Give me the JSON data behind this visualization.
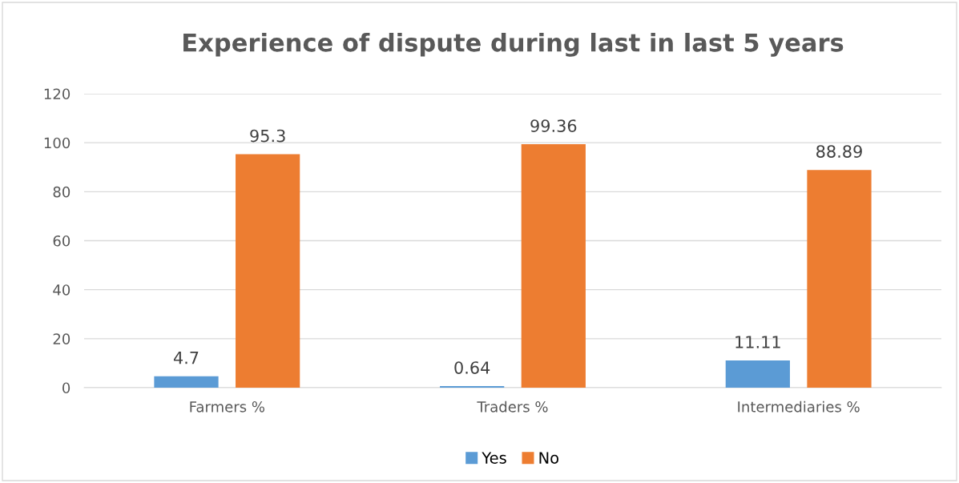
{
  "chart_data": {
    "type": "bar",
    "title": "Experience of dispute during last in last 5 years",
    "categories": [
      "Farmers %",
      "Traders %",
      "Intermediaries %"
    ],
    "series": [
      {
        "name": "Yes",
        "color": "#5b9bd5",
        "values": [
          4.7,
          0.64,
          11.11
        ]
      },
      {
        "name": "No",
        "color": "#ed7d31",
        "values": [
          95.3,
          99.36,
          88.89
        ]
      }
    ],
    "ylim": [
      0,
      120
    ],
    "yticks": [
      0,
      20,
      40,
      60,
      80,
      100,
      120
    ],
    "grid": "y",
    "legend": "bottom",
    "data_labels": true
  }
}
